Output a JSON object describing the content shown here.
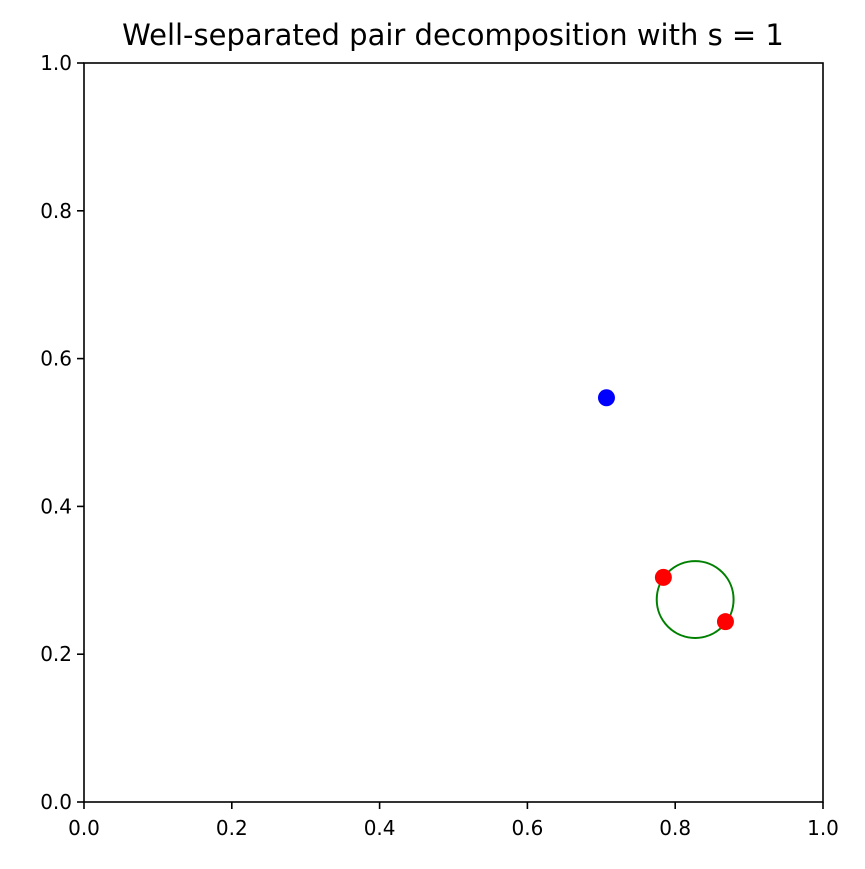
{
  "chart_data": {
    "type": "scatter",
    "title": "Well-separated pair decomposition with s = 1",
    "xlabel": "",
    "ylabel": "",
    "xlim": [
      0.0,
      1.0
    ],
    "ylim": [
      0.0,
      1.0
    ],
    "grid": false,
    "x_ticks": [
      "0.0",
      "0.2",
      "0.4",
      "0.6",
      "0.8",
      "1.0"
    ],
    "y_ticks": [
      "0.0",
      "0.2",
      "0.4",
      "0.6",
      "0.8",
      "1.0"
    ],
    "series": [
      {
        "color": "#0000ff",
        "points": [
          [
            0.707,
            0.547
          ]
        ]
      },
      {
        "color": "#ff0000",
        "points": [
          [
            0.784,
            0.304
          ],
          [
            0.868,
            0.244
          ]
        ]
      }
    ],
    "circles": [
      {
        "color": "#008000",
        "center": [
          0.827,
          0.274
        ],
        "radius": 0.052
      }
    ]
  }
}
